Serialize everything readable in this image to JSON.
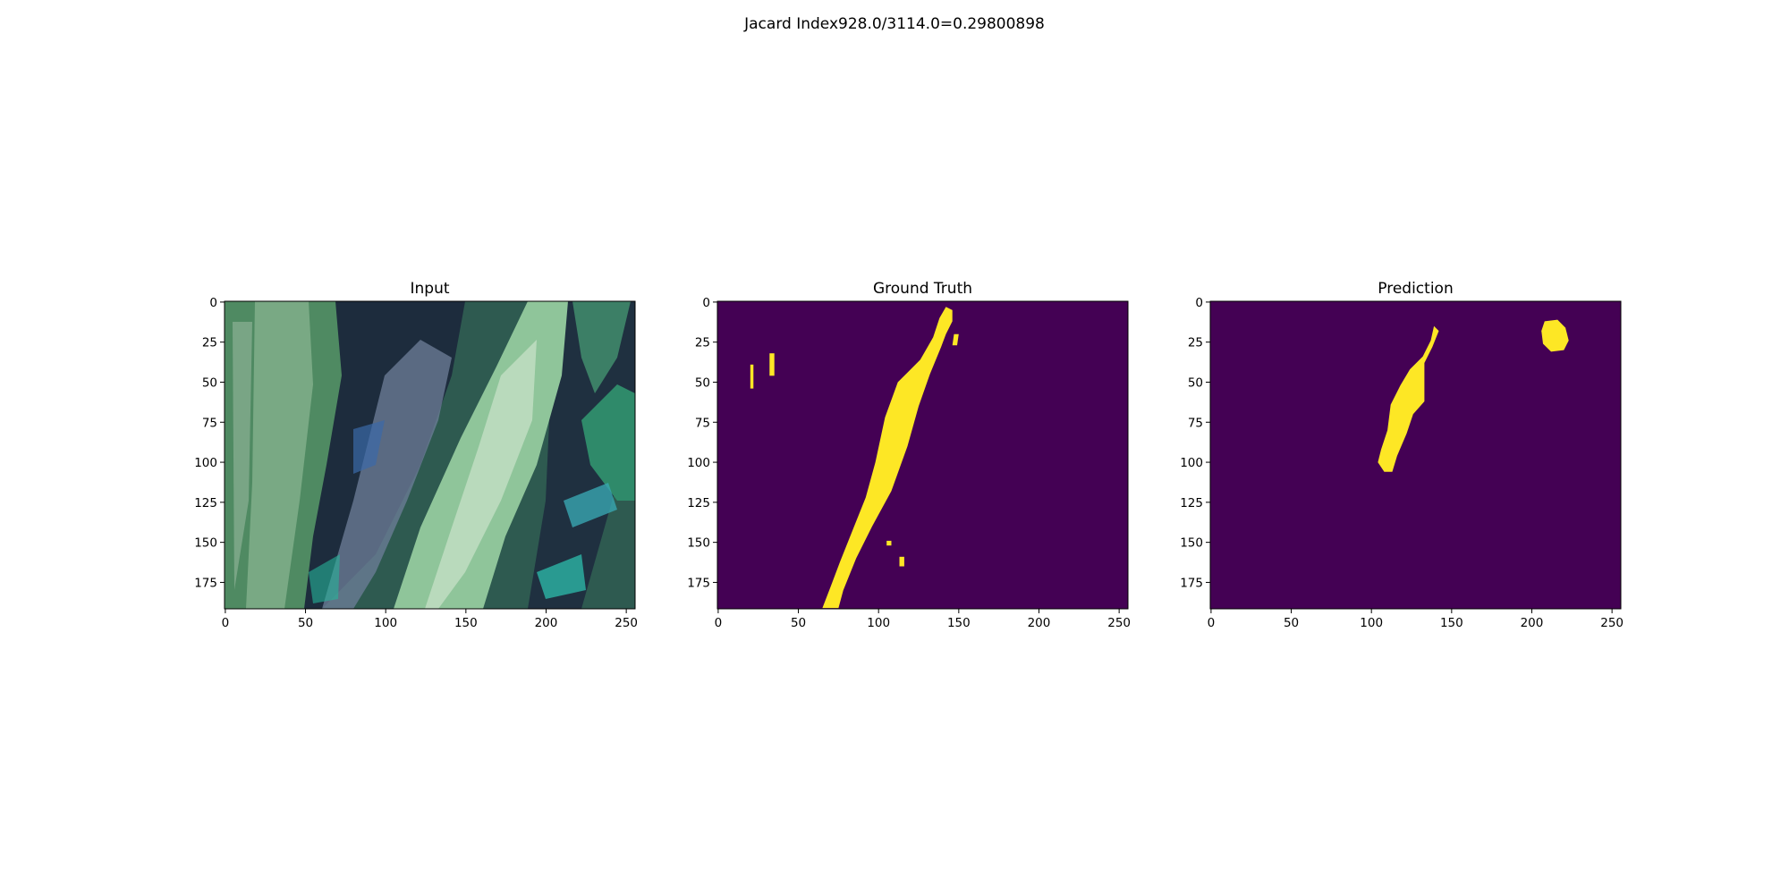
{
  "figure": {
    "suptitle": "Jacard Index928.0/3114.0=0.29800898"
  },
  "chart_data": [
    {
      "type": "image",
      "title": "Input",
      "content": "rgb-photo-corn-leaves",
      "xticks": [
        0,
        50,
        100,
        150,
        200,
        250
      ],
      "yticks": [
        0,
        25,
        50,
        75,
        100,
        125,
        150,
        175
      ],
      "xlim": [
        -0.5,
        255.5
      ],
      "ylim": [
        191.5,
        -0.5
      ],
      "image_size": [
        256,
        192
      ]
    },
    {
      "type": "heatmap",
      "title": "Ground Truth",
      "colormap": "viridis",
      "colors": {
        "background": "#440154",
        "foreground": "#fde725"
      },
      "xticks": [
        0,
        50,
        100,
        150,
        200,
        250
      ],
      "yticks": [
        0,
        25,
        50,
        75,
        100,
        125,
        150,
        175
      ],
      "xlim": [
        -0.5,
        255.5
      ],
      "ylim": [
        191.5,
        -0.5
      ],
      "image_size": [
        256,
        192
      ],
      "regions": [
        {
          "points": [
            [
              142,
              3
            ],
            [
              146,
              5
            ],
            [
              146,
              12
            ],
            [
              142,
              20
            ],
            [
              139,
              28
            ],
            [
              132,
              45
            ],
            [
              125,
              65
            ],
            [
              118,
              90
            ],
            [
              108,
              118
            ],
            [
              96,
              140
            ],
            [
              86,
              160
            ],
            [
              78,
              180
            ],
            [
              75,
              191
            ],
            [
              65,
              191
            ],
            [
              70,
              178
            ],
            [
              76,
              162
            ],
            [
              84,
              142
            ],
            [
              92,
              122
            ],
            [
              98,
              100
            ],
            [
              104,
              72
            ],
            [
              112,
              50
            ],
            [
              126,
              36
            ],
            [
              134,
              22
            ],
            [
              138,
              10
            ]
          ]
        },
        {
          "points": [
            [
              147,
              20
            ],
            [
              150,
              20
            ],
            [
              149,
              27
            ],
            [
              146,
              27
            ]
          ]
        },
        {
          "points": [
            [
              20,
              39
            ],
            [
              22,
              39
            ],
            [
              22,
              54
            ],
            [
              20,
              54
            ]
          ]
        },
        {
          "points": [
            [
              32,
              32
            ],
            [
              35,
              32
            ],
            [
              35,
              46
            ],
            [
              32,
              46
            ]
          ]
        },
        {
          "points": [
            [
              105,
              149
            ],
            [
              108,
              149
            ],
            [
              108,
              152
            ],
            [
              105,
              152
            ]
          ]
        },
        {
          "points": [
            [
              113,
              159
            ],
            [
              116,
              159
            ],
            [
              116,
              165
            ],
            [
              113,
              165
            ]
          ]
        }
      ]
    },
    {
      "type": "heatmap",
      "title": "Prediction",
      "colormap": "viridis",
      "colors": {
        "background": "#440154",
        "foreground": "#fde725"
      },
      "xticks": [
        0,
        50,
        100,
        150,
        200,
        250
      ],
      "yticks": [
        0,
        25,
        50,
        75,
        100,
        125,
        150,
        175
      ],
      "xlim": [
        -0.5,
        255.5
      ],
      "ylim": [
        191.5,
        -0.5
      ],
      "image_size": [
        256,
        192
      ],
      "regions": [
        {
          "points": [
            [
              139,
              15
            ],
            [
              142,
              18
            ],
            [
              138,
              28
            ],
            [
              133,
              38
            ],
            [
              133,
              62
            ],
            [
              126,
              70
            ],
            [
              122,
              82
            ],
            [
              116,
              96
            ],
            [
              113,
              106
            ],
            [
              108,
              106
            ],
            [
              104,
              100
            ],
            [
              106,
              92
            ],
            [
              110,
              80
            ],
            [
              112,
              64
            ],
            [
              118,
              52
            ],
            [
              124,
              42
            ],
            [
              132,
              34
            ],
            [
              137,
              24
            ]
          ]
        },
        {
          "points": [
            [
              208,
              12
            ],
            [
              216,
              11
            ],
            [
              221,
              16
            ],
            [
              223,
              24
            ],
            [
              220,
              30
            ],
            [
              212,
              31
            ],
            [
              207,
              26
            ],
            [
              206,
              18
            ]
          ]
        }
      ]
    }
  ]
}
